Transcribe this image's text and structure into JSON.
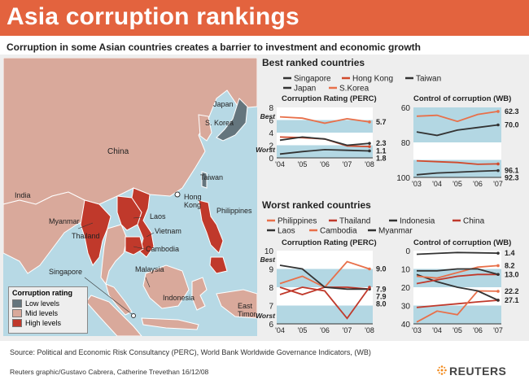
{
  "header": {
    "title": "Asia corruption rankings",
    "subtitle": "Corruption in some Asian countries creates a barrier to investment and economic growth"
  },
  "map": {
    "labels": [
      "China",
      "Japan",
      "S. Korea",
      "Taiwan",
      "India",
      "Hong Kong",
      "Myanmar",
      "Laos",
      "Thailand",
      "Vietnam",
      "Philippines",
      "Cambodia",
      "Singapore",
      "Malaysia",
      "Indonesia",
      "East Timor"
    ],
    "legend": {
      "title": "Corruption rating",
      "items": [
        {
          "label": "Low levels",
          "color": "#64757d"
        },
        {
          "label": "Mid levels",
          "color": "#d9a99b"
        },
        {
          "label": "High levels",
          "color": "#c0392b"
        }
      ]
    }
  },
  "sections": {
    "best": "Best ranked countries",
    "worst": "Worst ranked countries"
  },
  "legends": {
    "best": [
      {
        "name": "Singapore",
        "color": "#333333"
      },
      {
        "name": "Hong Kong",
        "color": "#d14a2c"
      },
      {
        "name": "Taiwan",
        "color": "#333333"
      },
      {
        "name": "Japan",
        "color": "#333333"
      },
      {
        "name": "S.Korea",
        "color": "#e8704a"
      }
    ],
    "worst": [
      {
        "name": "Philippines",
        "color": "#e8704a"
      },
      {
        "name": "Thailand",
        "color": "#c0392b"
      },
      {
        "name": "Indonesia",
        "color": "#333333"
      },
      {
        "name": "China",
        "color": "#c0392b"
      },
      {
        "name": "Laos",
        "color": "#333333"
      },
      {
        "name": "Cambodia",
        "color": "#e8704a"
      },
      {
        "name": "Myanmar",
        "color": "#333333"
      }
    ]
  },
  "chart_data": [
    {
      "type": "line",
      "title": "Corruption Rating (PERC)",
      "x": [
        "'04",
        "'05",
        "'06",
        "'07",
        "'08"
      ],
      "ylim": [
        8,
        0
      ],
      "yticks": [
        0,
        2,
        4,
        6,
        8
      ],
      "axis_notes": {
        "top": "Best",
        "bottom": "Worst"
      },
      "series": [
        {
          "name": "Singapore",
          "values": [
            0.6,
            1.0,
            1.3,
            1.2,
            1.1
          ]
        },
        {
          "name": "Hong Kong",
          "values": [
            3.3,
            3.2,
            3.0,
            1.9,
            1.8
          ]
        },
        {
          "name": "Japan",
          "values": [
            2.8,
            3.3,
            3.0,
            2.0,
            2.3
          ]
        },
        {
          "name": "S.Korea",
          "values": [
            6.5,
            6.3,
            5.5,
            6.2,
            5.7
          ]
        }
      ],
      "end_labels": [
        "1.1",
        "1.8",
        "2.3",
        "5.7"
      ]
    },
    {
      "type": "line",
      "title": "Control of corruption (WB)",
      "x": [
        "'03",
        "'04",
        "'05",
        "'06",
        "'07"
      ],
      "ylim": [
        60,
        100
      ],
      "yticks": [
        60,
        80,
        100
      ],
      "series": [
        {
          "name": "Singapore",
          "values": [
            98.5,
            97.5,
            97.0,
            96.5,
            96.1
          ]
        },
        {
          "name": "Hong Kong",
          "values": [
            90.5,
            91.0,
            91.5,
            92.5,
            92.3
          ]
        },
        {
          "name": "Taiwan",
          "values": [
            74.0,
            76.0,
            73.0,
            71.5,
            70.0
          ]
        },
        {
          "name": "S.Korea",
          "values": [
            65.0,
            64.5,
            68.0,
            64.0,
            62.3
          ]
        }
      ],
      "end_labels": [
        "96.1",
        "92.3",
        "70.0",
        "62.3"
      ]
    },
    {
      "type": "line",
      "title": "Corruption Rating (PERC)",
      "x": [
        "'04",
        "'05",
        "'06",
        "'07",
        "'08"
      ],
      "ylim": [
        10,
        6
      ],
      "yticks": [
        6,
        7,
        8,
        9,
        10
      ],
      "axis_notes": {
        "top": "Best",
        "bottom": "Worst"
      },
      "series": [
        {
          "name": "Philippines",
          "values": [
            8.2,
            8.6,
            8.0,
            9.4,
            9.0
          ]
        },
        {
          "name": "Thailand",
          "values": [
            8.0,
            7.6,
            8.0,
            8.0,
            7.9
          ]
        },
        {
          "name": "Indonesia",
          "values": [
            9.2,
            9.0,
            8.0,
            7.9,
            7.9
          ]
        },
        {
          "name": "China",
          "values": [
            7.6,
            8.0,
            7.8,
            6.3,
            8.0
          ]
        }
      ],
      "end_labels": [
        "7.9",
        "7.9",
        "8.0",
        "9.0"
      ]
    },
    {
      "type": "line",
      "title": "Control of corruption (WB)",
      "x": [
        "'03",
        "'04",
        "'05",
        "'06",
        "'07"
      ],
      "ylim": [
        0,
        40
      ],
      "yticks": [
        0,
        10,
        20,
        30,
        40
      ],
      "series": [
        {
          "name": "China",
          "values": [
            31,
            30,
            29,
            28,
            27.1
          ]
        },
        {
          "name": "Philippines",
          "values": [
            39,
            33,
            35,
            22,
            22.2
          ]
        },
        {
          "name": "Indonesia",
          "values": [
            13,
            17,
            20,
            22,
            27.1
          ]
        },
        {
          "name": "Thailand",
          "values": [
            18,
            16,
            14,
            13,
            13.0
          ]
        },
        {
          "name": "Cambodia",
          "values": [
            14,
            15,
            12,
            9,
            8.2
          ]
        },
        {
          "name": "Laos",
          "values": [
            11,
            11,
            10,
            10,
            13.0
          ]
        },
        {
          "name": "Myanmar",
          "values": [
            2,
            1.5,
            1.0,
            1.2,
            1.4
          ]
        }
      ],
      "end_labels": [
        "27.1",
        "22.2",
        "13.0",
        "8.2",
        "1.4"
      ]
    }
  ],
  "footer": {
    "source": "Source: Political and Economic Risk Consultancy (PERC), World Bank Worldwide Governance Indicators, (WB)",
    "credit": "Reuters graphic/Gustavo Cabrera, Catherine Trevethan  16/12/08",
    "brand": "REUTERS"
  }
}
